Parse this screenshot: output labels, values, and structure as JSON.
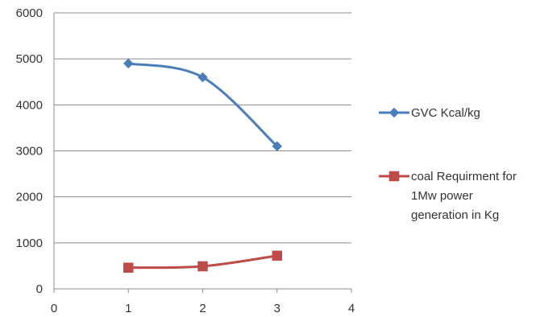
{
  "chart_data": {
    "type": "scatter",
    "title": "",
    "xlabel": "",
    "ylabel": "",
    "xlim": [
      0,
      4
    ],
    "ylim": [
      0,
      6000
    ],
    "x_ticks": [
      "0",
      "1",
      "2",
      "3",
      "4"
    ],
    "y_ticks": [
      "0",
      "1000",
      "2000",
      "3000",
      "4000",
      "5000",
      "6000"
    ],
    "grid": "horizontal",
    "smooth_lines": true,
    "legend_position": "right",
    "series": [
      {
        "name": "GVC Kcal/kg",
        "legend_lines": [
          "GVC Kcal/kg"
        ],
        "color": "#4a7ebb",
        "marker": "diamond",
        "x": [
          1,
          2,
          3
        ],
        "y": [
          4900,
          4600,
          3100
        ]
      },
      {
        "name": "coal Requirment for 1Mw power generation in Kg",
        "legend_lines": [
          "coal Requirment for",
          "1Mw power",
          "generation in Kg"
        ],
        "color": "#be4b48",
        "marker": "square",
        "x": [
          1,
          2,
          3
        ],
        "y": [
          460,
          490,
          720
        ]
      }
    ]
  }
}
